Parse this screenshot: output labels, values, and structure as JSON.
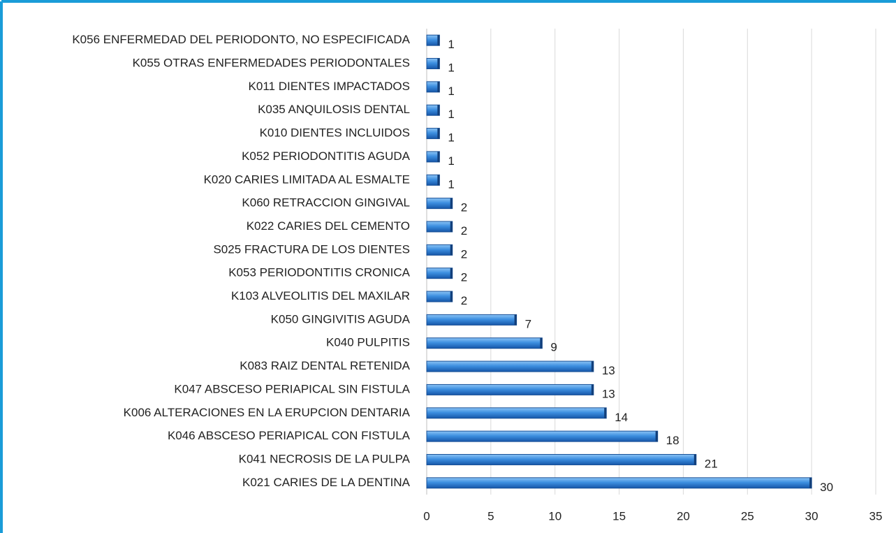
{
  "chart_data": {
    "type": "bar",
    "orientation": "horizontal",
    "color": "#2a7fd4",
    "categories": [
      "K056 ENFERMEDAD DEL PERIODONTO, NO ESPECIFICADA",
      "K055 OTRAS ENFERMEDADES PERIODONTALES",
      "K011 DIENTES IMPACTADOS",
      "K035 ANQUILOSIS DENTAL",
      "K010 DIENTES INCLUIDOS",
      "K052 PERIODONTITIS AGUDA",
      "K020 CARIES LIMITADA AL ESMALTE",
      "K060 RETRACCION GINGIVAL",
      "K022 CARIES DEL CEMENTO",
      "S025 FRACTURA DE LOS DIENTES",
      "K053 PERIODONTITIS CRONICA",
      "K103 ALVEOLITIS DEL MAXILAR",
      "K050 GINGIVITIS AGUDA",
      "K040 PULPITIS",
      "K083 RAIZ DENTAL RETENIDA",
      "K047 ABSCESO PERIAPICAL SIN FISTULA",
      "K006 ALTERACIONES EN LA ERUPCION DENTARIA",
      "K046 ABSCESO PERIAPICAL CON FISTULA",
      "K041 NECROSIS DE LA PULPA",
      "K021 CARIES DE LA DENTINA"
    ],
    "values": [
      1,
      1,
      1,
      1,
      1,
      1,
      1,
      2,
      2,
      2,
      2,
      2,
      7,
      9,
      13,
      13,
      14,
      18,
      21,
      30
    ],
    "xlim": [
      0,
      35
    ],
    "xticks": [
      0,
      5,
      10,
      15,
      20,
      25,
      30,
      35
    ],
    "grid": true
  }
}
